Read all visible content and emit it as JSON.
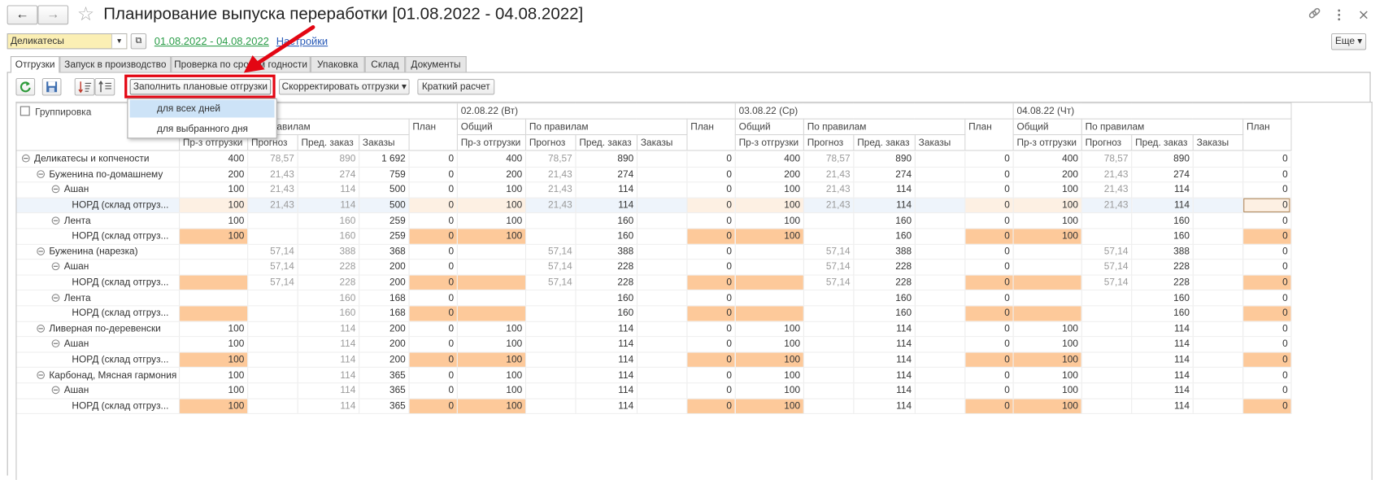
{
  "window": {
    "title": "Планирование выпуска переработки [01.08.2022 - 04.08.2022]"
  },
  "filter": {
    "value": "Деликатесы",
    "period": "01.08.2022 - 04.08.2022",
    "settings": "Настройки",
    "more": "Еще"
  },
  "tabs": [
    "Отгрузки",
    "Запуск в производство",
    "Проверка по срокам годности",
    "Упаковка",
    "Склад",
    "Документы"
  ],
  "toolbar": {
    "fill": "Заполнить плановые отгрузки",
    "adjust": "Скорректировать отгрузки",
    "brief": "Краткий расчет"
  },
  "menu": [
    "для всех дней",
    "для выбранного дня"
  ],
  "table": {
    "group_header": "Группировка",
    "day_dates": [
      "02.08.22 (Вт)",
      "03.08.22 (Ср)",
      "04.08.22 (Чт)"
    ],
    "general": "Общий",
    "by_rules": "По правилам",
    "columns": [
      "Пр-з отгрузки",
      "Прогноз",
      "Пред. заказ",
      "Заказы",
      "План"
    ],
    "selected_row": 3,
    "current_cell": {
      "day": 3,
      "column": 4
    },
    "rows": [
      {
        "name": "Деликатесы и копчености",
        "level": 0,
        "days": [
          [
            "400",
            "78,57",
            "890",
            "1 692",
            "0"
          ],
          [
            "400",
            "78,57",
            "890",
            null,
            "0"
          ],
          [
            "400",
            "78,57",
            "890",
            null,
            "0"
          ],
          [
            "400",
            "78,57",
            "890",
            null,
            "0"
          ]
        ]
      },
      {
        "name": "Буженина по-домашнему",
        "level": 1,
        "days": [
          [
            "200",
            "21,43",
            "274",
            "759",
            "0"
          ],
          [
            "200",
            "21,43",
            "274",
            null,
            "0"
          ],
          [
            "200",
            "21,43",
            "274",
            null,
            "0"
          ],
          [
            "200",
            "21,43",
            "274",
            null,
            "0"
          ]
        ]
      },
      {
        "name": "Ашан",
        "level": 2,
        "days": [
          [
            "100",
            "21,43",
            "114",
            "500",
            "0"
          ],
          [
            "100",
            "21,43",
            "114",
            null,
            "0"
          ],
          [
            "100",
            "21,43",
            "114",
            null,
            "0"
          ],
          [
            "100",
            "21,43",
            "114",
            null,
            "0"
          ]
        ]
      },
      {
        "name": "НОРД (склад отгруз...",
        "level": 3,
        "days": [
          [
            "100",
            "21,43",
            "114",
            "500",
            "0"
          ],
          [
            "100",
            "21,43",
            "114",
            null,
            "0"
          ],
          [
            "100",
            "21,43",
            "114",
            null,
            "0"
          ],
          [
            "100",
            "21,43",
            "114",
            null,
            "0"
          ]
        ]
      },
      {
        "name": "Лента",
        "level": 2,
        "days": [
          [
            "100",
            null,
            "160",
            "259",
            "0"
          ],
          [
            "100",
            null,
            "160",
            null,
            "0"
          ],
          [
            "100",
            null,
            "160",
            null,
            "0"
          ],
          [
            "100",
            null,
            "160",
            null,
            "0"
          ]
        ]
      },
      {
        "name": "НОРД (склад отгруз...",
        "level": 3,
        "days": [
          [
            "100",
            null,
            "160",
            "259",
            "0"
          ],
          [
            "100",
            null,
            "160",
            null,
            "0"
          ],
          [
            "100",
            null,
            "160",
            null,
            "0"
          ],
          [
            "100",
            null,
            "160",
            null,
            "0"
          ]
        ]
      },
      {
        "name": "Буженина (нарезка)",
        "level": 1,
        "days": [
          [
            null,
            "57,14",
            "388",
            "368",
            "0"
          ],
          [
            null,
            "57,14",
            "388",
            null,
            "0"
          ],
          [
            null,
            "57,14",
            "388",
            null,
            "0"
          ],
          [
            null,
            "57,14",
            "388",
            null,
            "0"
          ]
        ]
      },
      {
        "name": "Ашан",
        "level": 2,
        "days": [
          [
            null,
            "57,14",
            "228",
            "200",
            "0"
          ],
          [
            null,
            "57,14",
            "228",
            null,
            "0"
          ],
          [
            null,
            "57,14",
            "228",
            null,
            "0"
          ],
          [
            null,
            "57,14",
            "228",
            null,
            "0"
          ]
        ]
      },
      {
        "name": "НОРД (склад отгруз...",
        "level": 3,
        "days": [
          [
            null,
            "57,14",
            "228",
            "200",
            "0"
          ],
          [
            null,
            "57,14",
            "228",
            null,
            "0"
          ],
          [
            null,
            "57,14",
            "228",
            null,
            "0"
          ],
          [
            null,
            "57,14",
            "228",
            null,
            "0"
          ]
        ]
      },
      {
        "name": "Лента",
        "level": 2,
        "days": [
          [
            null,
            null,
            "160",
            "168",
            "0"
          ],
          [
            null,
            null,
            "160",
            null,
            "0"
          ],
          [
            null,
            null,
            "160",
            null,
            "0"
          ],
          [
            null,
            null,
            "160",
            null,
            "0"
          ]
        ]
      },
      {
        "name": "НОРД (склад отгруз...",
        "level": 3,
        "days": [
          [
            null,
            null,
            "160",
            "168",
            "0"
          ],
          [
            null,
            null,
            "160",
            null,
            "0"
          ],
          [
            null,
            null,
            "160",
            null,
            "0"
          ],
          [
            null,
            null,
            "160",
            null,
            "0"
          ]
        ]
      },
      {
        "name": "Ливерная по-деревенски",
        "level": 1,
        "days": [
          [
            "100",
            null,
            "114",
            "200",
            "0"
          ],
          [
            "100",
            null,
            "114",
            null,
            "0"
          ],
          [
            "100",
            null,
            "114",
            null,
            "0"
          ],
          [
            "100",
            null,
            "114",
            null,
            "0"
          ]
        ]
      },
      {
        "name": "Ашан",
        "level": 2,
        "days": [
          [
            "100",
            null,
            "114",
            "200",
            "0"
          ],
          [
            "100",
            null,
            "114",
            null,
            "0"
          ],
          [
            "100",
            null,
            "114",
            null,
            "0"
          ],
          [
            "100",
            null,
            "114",
            null,
            "0"
          ]
        ]
      },
      {
        "name": "НОРД (склад отгруз...",
        "level": 3,
        "days": [
          [
            "100",
            null,
            "114",
            "200",
            "0"
          ],
          [
            "100",
            null,
            "114",
            null,
            "0"
          ],
          [
            "100",
            null,
            "114",
            null,
            "0"
          ],
          [
            "100",
            null,
            "114",
            null,
            "0"
          ]
        ]
      },
      {
        "name": "Карбонад, Мясная гармония",
        "level": 1,
        "days": [
          [
            "100",
            null,
            "114",
            "365",
            "0"
          ],
          [
            "100",
            null,
            "114",
            null,
            "0"
          ],
          [
            "100",
            null,
            "114",
            null,
            "0"
          ],
          [
            "100",
            null,
            "114",
            null,
            "0"
          ]
        ]
      },
      {
        "name": "Ашан",
        "level": 2,
        "days": [
          [
            "100",
            null,
            "114",
            "365",
            "0"
          ],
          [
            "100",
            null,
            "114",
            null,
            "0"
          ],
          [
            "100",
            null,
            "114",
            null,
            "0"
          ],
          [
            "100",
            null,
            "114",
            null,
            "0"
          ]
        ]
      },
      {
        "name": "НОРД (склад отгруз...",
        "level": 3,
        "days": [
          [
            "100",
            null,
            "114",
            "365",
            "0"
          ],
          [
            "100",
            null,
            "114",
            null,
            "0"
          ],
          [
            "100",
            null,
            "114",
            null,
            "0"
          ],
          [
            "100",
            null,
            "114",
            null,
            "0"
          ]
        ]
      }
    ]
  }
}
